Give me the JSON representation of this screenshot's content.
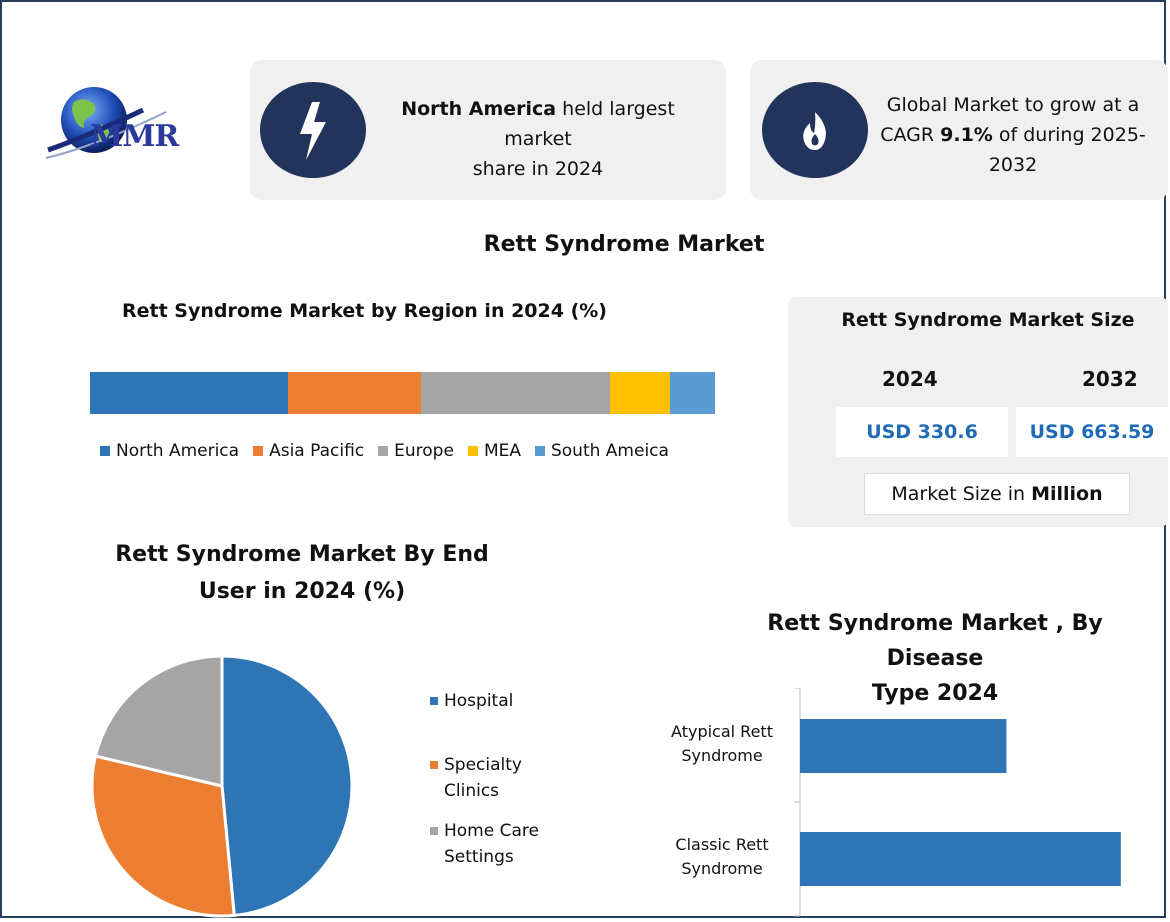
{
  "header": {
    "logo_text": "MMR",
    "card1": {
      "bold": "North America",
      "rest_line1": " held largest market",
      "line2": "share in 2024"
    },
    "card2": {
      "line1": "Global Market to grow at a",
      "line2_pre": "CAGR ",
      "line2_bold": "9.1%",
      "line2_post": " of during 2025-",
      "line3": "2032"
    },
    "icons": [
      "lightning-icon",
      "flame-icon"
    ]
  },
  "main_title": "Rett Syndrome Market",
  "region_chart": {
    "title": "Rett Syndrome Market by Region in 2024 (%)"
  },
  "market_size": {
    "title": "Rett Syndrome Market Size",
    "year1": "2024",
    "year2": "2032",
    "value1": "USD 330.6",
    "value2": "USD 663.59",
    "unit_pre": "Market Size in ",
    "unit_bold": "Million"
  },
  "end_user_chart": {
    "title_line1": "Rett Syndrome Market By End",
    "title_line2": "User in 2024 (%)"
  },
  "disease_chart": {
    "title_line1": "Rett Syndrome Market , By Disease",
    "title_line2": "Type 2024"
  },
  "colors": {
    "blue": "#2e75b6",
    "orange": "#ed7d31",
    "gray": "#a5a5a5",
    "yellow": "#ffc000",
    "lightblue": "#5b9bd5",
    "navy": "#23345c"
  },
  "chart_data": [
    {
      "type": "bar",
      "orientation": "stacked-horizontal",
      "categories": [
        "North America",
        "Asia Pacific",
        "Europe",
        "MEA",
        "South Ameica"
      ],
      "values": [
        31.7,
        21.3,
        30.2,
        9.6,
        7.2
      ],
      "title": "Rett Syndrome Market by Region in 2024 (%)",
      "legend": "bottom"
    },
    {
      "type": "pie",
      "categories": [
        "Hospital",
        "Specialty Clinics",
        "Home Care Settings"
      ],
      "values": [
        48.5,
        30.2,
        21.3
      ],
      "title": "Rett Syndrome Market By End User in 2024 (%)",
      "legend": "right"
    },
    {
      "type": "bar",
      "orientation": "horizontal",
      "categories": [
        "Atypical Rett Syndrome",
        "Classic Rett Syndrome"
      ],
      "values": [
        195,
        303
      ],
      "title": "Rett Syndrome Market , By Disease Type 2024",
      "grid": false
    }
  ]
}
